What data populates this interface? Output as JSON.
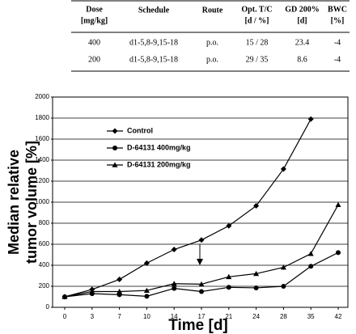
{
  "table": {
    "columns": [
      [
        "Dose",
        "[mg/kg]"
      ],
      [
        "Schedule"
      ],
      [
        "Route"
      ],
      [
        "Opt. T/C",
        "[d / %]"
      ],
      [
        "GD 200%",
        "[d]"
      ],
      [
        "BWC",
        "[%]"
      ]
    ],
    "rows": [
      [
        "400",
        "d1-5,8-9,15-18",
        "p.o.",
        "15 / 28",
        "23.4",
        "-4"
      ],
      [
        "200",
        "d1-5,8-9,15-18",
        "p.o.",
        "29 / 35",
        "8.6",
        "-4"
      ]
    ]
  },
  "chart_data": {
    "type": "line",
    "x_label": "Time [d]",
    "y_label": [
      "Median relative",
      "tumor volume [%]"
    ],
    "categories": [
      "0",
      "3",
      "7",
      "10",
      "14",
      "17",
      "21",
      "24",
      "28",
      "35",
      "42"
    ],
    "series": [
      {
        "name": "Control",
        "color": "#000000",
        "marker": "diamond",
        "values": [
          100,
          170,
          265,
          420,
          550,
          640,
          775,
          965,
          1315,
          1790,
          null
        ]
      },
      {
        "name": "D-64131 400mg/kg",
        "color": "#000000",
        "marker": "circle",
        "values": [
          100,
          130,
          120,
          105,
          180,
          150,
          190,
          185,
          200,
          390,
          520
        ]
      },
      {
        "name": "D-64131 200mg/kg",
        "color": "#000000",
        "marker": "triangle",
        "values": [
          100,
          150,
          150,
          160,
          225,
          220,
          290,
          320,
          380,
          510,
          975
        ]
      }
    ],
    "ylim": [
      0,
      2000
    ],
    "yticks": [
      0,
      200,
      400,
      600,
      800,
      1000,
      1200,
      1400,
      1600,
      1800,
      2000
    ],
    "grid": true
  }
}
